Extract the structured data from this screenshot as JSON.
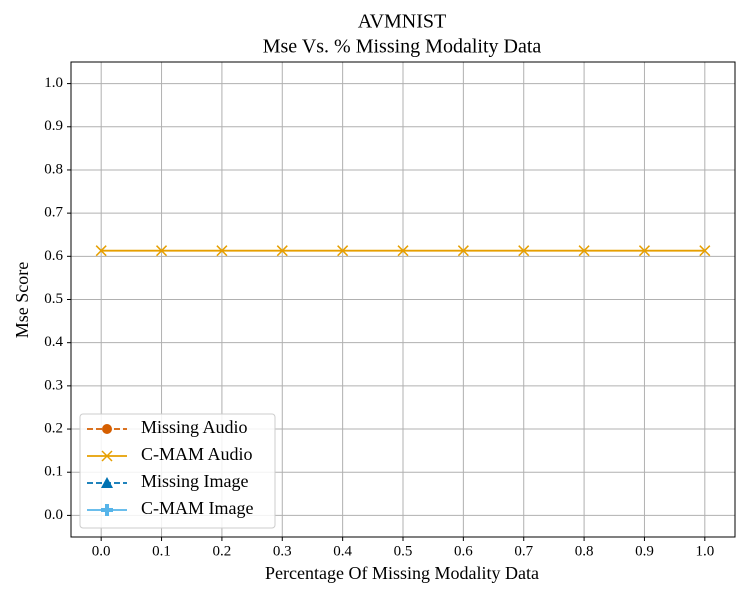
{
  "chart_data": {
    "type": "line",
    "title": "AVMNIST",
    "subtitle": "Mse Vs. % Missing Modality Data",
    "xlabel": "Percentage Of Missing Modality Data",
    "ylabel": "Mse Score",
    "x": [
      0.0,
      0.1,
      0.2,
      0.3,
      0.4,
      0.5,
      0.6,
      0.7,
      0.8,
      0.9,
      1.0
    ],
    "series": [
      {
        "name": "Missing Audio",
        "color": "#d55e00",
        "marker": "circle",
        "dashed": true,
        "values": [
          null,
          null,
          null,
          null,
          null,
          null,
          null,
          null,
          null,
          null,
          null
        ]
      },
      {
        "name": "C-MAM Audio",
        "color": "#e69f00",
        "marker": "x",
        "dashed": false,
        "values": [
          0.613,
          0.613,
          0.613,
          0.613,
          0.613,
          0.613,
          0.613,
          0.613,
          0.613,
          0.613,
          0.613
        ]
      },
      {
        "name": "Missing Image",
        "color": "#0072b2",
        "marker": "triangle",
        "dashed": true,
        "values": [
          null,
          null,
          null,
          null,
          null,
          null,
          null,
          null,
          null,
          null,
          null
        ]
      },
      {
        "name": "C-MAM Image",
        "color": "#56b4e9",
        "marker": "plus",
        "dashed": false,
        "values": [
          null,
          null,
          null,
          null,
          null,
          null,
          null,
          null,
          null,
          null,
          null
        ]
      }
    ],
    "xlim": [
      -0.05,
      1.05
    ],
    "ylim": [
      -0.05,
      1.05
    ],
    "xticks": [
      {
        "value": 0,
        "label": "0.0"
      },
      {
        "value": 0.1,
        "label": "0.1"
      },
      {
        "value": 0.2,
        "label": "0.2"
      },
      {
        "value": 0.3,
        "label": "0.3"
      },
      {
        "value": 0.4,
        "label": "0.4"
      },
      {
        "value": 0.5,
        "label": "0.5"
      },
      {
        "value": 0.6,
        "label": "0.6"
      },
      {
        "value": 0.7,
        "label": "0.7"
      },
      {
        "value": 0.8,
        "label": "0.8"
      },
      {
        "value": 0.9,
        "label": "0.9"
      },
      {
        "value": 1,
        "label": "1.0"
      }
    ],
    "yticks": [
      {
        "value": 0,
        "label": "0.0"
      },
      {
        "value": 0.1,
        "label": "0.1"
      },
      {
        "value": 0.2,
        "label": "0.2"
      },
      {
        "value": 0.3,
        "label": "0.3"
      },
      {
        "value": 0.4,
        "label": "0.4"
      },
      {
        "value": 0.5,
        "label": "0.5"
      },
      {
        "value": 0.6,
        "label": "0.6"
      },
      {
        "value": 0.7,
        "label": "0.7"
      },
      {
        "value": 0.8,
        "label": "0.8"
      },
      {
        "value": 0.9,
        "label": "0.9"
      },
      {
        "value": 1,
        "label": "1.0"
      }
    ],
    "grid": true,
    "legend": "lower left"
  }
}
